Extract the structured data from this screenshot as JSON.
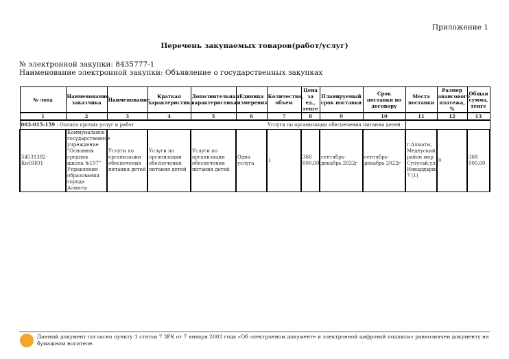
{
  "appendix": "Приложение 1",
  "title": "Перечень закупаемых товаров(работ/услуг)",
  "procurement_number": "№ электронной закупки: 8435777-1",
  "procurement_name": "Наименование электронной закупки: Объявление о государственных закупках",
  "table": {
    "headers": [
      "№ лота",
      "Наименование заказчика",
      "Наименование",
      "Краткая характеристика",
      "Дополнительная характеристика",
      "Единица измерения",
      "Количество, объем",
      "Цена за ед., тенге",
      "Планируемый срок поставки",
      "Срок поставки по договору",
      "Места поставки",
      "Размер авансового платежа, %",
      "Общая сумма, тенге"
    ],
    "numbers": [
      "1",
      "2",
      "3",
      "4",
      "5",
      "6",
      "7",
      "8",
      "9",
      "10",
      "11",
      "12",
      "13"
    ],
    "group": {
      "code": "003-015-159",
      "desc": " : Оплата прочих услуг и работ",
      "service": "Услуги по организации обеспечения питания детей"
    },
    "rows": [
      [
        "54531382-КпОПО1",
        "Коммунальное государственное учреждение \"Основная средняя школа №197\" Управления образования города Алматы",
        "Услуги по организации обеспечения питания детей",
        "Услуги по организации обеспечения питания детей",
        "Услуги по организации обеспечения питания детей",
        "Одна услуга",
        "1",
        "368 000.00",
        "сентябрь-декабрь 2022г",
        "сентябрь-декабрь 2022г",
        "г.Алматы, Медеуский район мкр Супусай,ул Инкардария 7 (1)",
        "0",
        "368 000.00"
      ]
    ]
  },
  "footer": "Данный документ согласно пункту 1 статьи 7 ЗРК от 7 января 2003 года «Об электронном документе и электронной цифровой подписи» равнозначен документу на бумажном носителе."
}
